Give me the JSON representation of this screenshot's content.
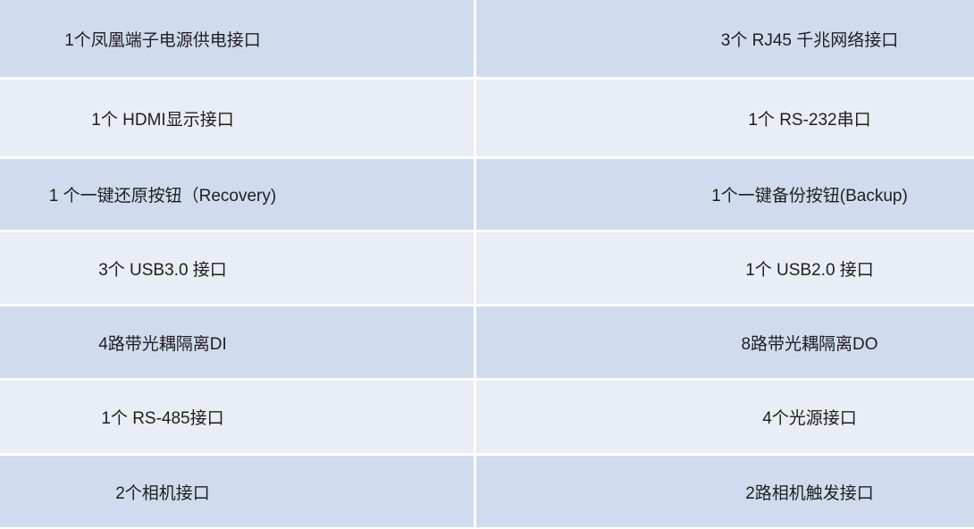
{
  "colors": {
    "row_dark": "#d0dcee",
    "row_light": "#e9edf5",
    "divider": "#ffffff"
  },
  "rows": [
    {
      "left": "1个凤凰端子电源供电接口",
      "right": "3个 RJ45 千兆网络接口"
    },
    {
      "left": "1个 HDMI显示接口",
      "right": "1个 RS-232串口"
    },
    {
      "left": "1 个一键还原按钮（Recovery)",
      "right": "1个一键备份按钮(Backup)"
    },
    {
      "left": "3个 USB3.0 接口",
      "right": "1个 USB2.0 接口"
    },
    {
      "left": "4路带光耦隔离DI",
      "right": "8路带光耦隔离DO"
    },
    {
      "left": "1个 RS-485接口",
      "right": "4个光源接口"
    },
    {
      "left": "2个相机接口",
      "right": "2路相机触发接口"
    }
  ]
}
